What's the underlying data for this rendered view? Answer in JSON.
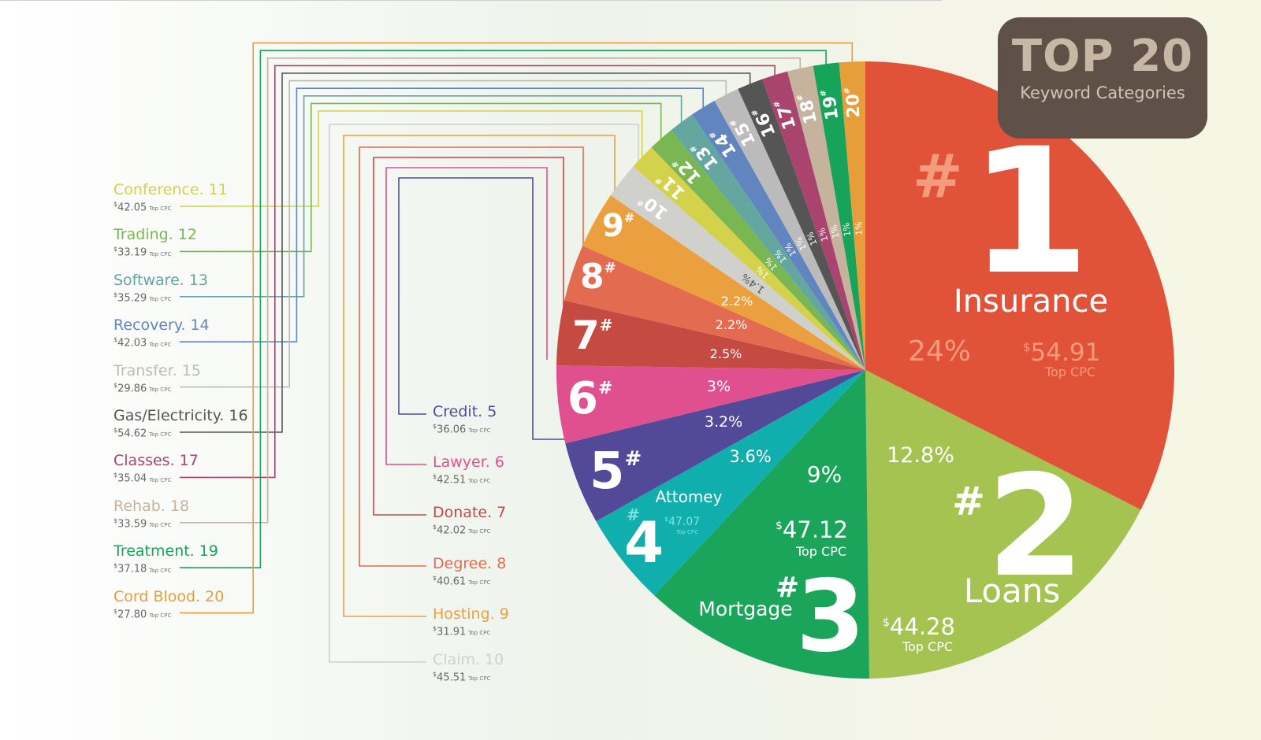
{
  "title": {
    "main": "TOP 20",
    "sub": "Keyword Categories"
  },
  "cpc_caption": "Top CPC",
  "hash_mark": "#",
  "chart_data": {
    "type": "pie",
    "slices": [
      {
        "rank": 1,
        "name": "Insurance",
        "pct_label": "24%",
        "value": 24,
        "cpc": 54.91,
        "color": "#E05339"
      },
      {
        "rank": 2,
        "name": "Loans",
        "pct_label": "12.8%",
        "value": 12.8,
        "cpc": 44.28,
        "color": "#A5C351"
      },
      {
        "rank": 3,
        "name": "Mortgage",
        "pct_label": "9%",
        "value": 9,
        "cpc": 47.12,
        "color": "#1BA55A"
      },
      {
        "rank": 4,
        "name": "Attomey",
        "pct_label": "3.6%",
        "value": 3.6,
        "cpc": 47.07,
        "color": "#10AFAE"
      },
      {
        "rank": 5,
        "name": "Credit",
        "pct_label": "3.2%",
        "value": 3.2,
        "cpc": 36.06,
        "color": "#524A99"
      },
      {
        "rank": 6,
        "name": "Lawyer",
        "pct_label": "3%",
        "value": 3,
        "cpc": 42.51,
        "color": "#E0508E"
      },
      {
        "rank": 7,
        "name": "Donate",
        "pct_label": "2.5%",
        "value": 2.5,
        "cpc": 42.02,
        "color": "#C44A42"
      },
      {
        "rank": 8,
        "name": "Degree",
        "pct_label": "2.2%",
        "value": 2.2,
        "cpc": 40.61,
        "color": "#E36B50"
      },
      {
        "rank": 9,
        "name": "Hosting",
        "pct_label": "2.2%",
        "value": 2.2,
        "cpc": 31.91,
        "color": "#EBA03F"
      },
      {
        "rank": 10,
        "name": "Claim",
        "pct_label": "1.4%",
        "value": 1.4,
        "cpc": 45.51,
        "color": "#D0D0CC"
      },
      {
        "rank": 11,
        "name": "Conference",
        "pct_label": "1%",
        "value": 1,
        "cpc": 42.05,
        "color": "#D3D24A"
      },
      {
        "rank": 12,
        "name": "Trading",
        "pct_label": "1%",
        "value": 1,
        "cpc": 33.19,
        "color": "#7AB651"
      },
      {
        "rank": 13,
        "name": "Software",
        "pct_label": "1%",
        "value": 1,
        "cpc": 35.29,
        "color": "#63A7A0"
      },
      {
        "rank": 14,
        "name": "Recovery",
        "pct_label": "1%",
        "value": 1,
        "cpc": 42.03,
        "color": "#6185BE"
      },
      {
        "rank": 15,
        "name": "Transfer",
        "pct_label": "1%",
        "value": 1,
        "cpc": 29.86,
        "color": "#BBBBBB"
      },
      {
        "rank": 16,
        "name": "Gas/Electricity",
        "pct_label": "1%",
        "value": 1,
        "cpc": 54.62,
        "color": "#555555"
      },
      {
        "rank": 17,
        "name": "Classes",
        "pct_label": "1%",
        "value": 1,
        "cpc": 35.04,
        "color": "#A9446F"
      },
      {
        "rank": 18,
        "name": "Rehab",
        "pct_label": "1%",
        "value": 1,
        "cpc": 33.59,
        "color": "#C5B39E"
      },
      {
        "rank": 19,
        "name": "Treatment",
        "pct_label": "1%",
        "value": 1,
        "cpc": 37.18,
        "color": "#18A35A"
      },
      {
        "rank": 20,
        "name": "Cord Blood",
        "pct_label": "1%",
        "value": 1,
        "cpc": 27.8,
        "color": "#E79E3A"
      }
    ]
  }
}
